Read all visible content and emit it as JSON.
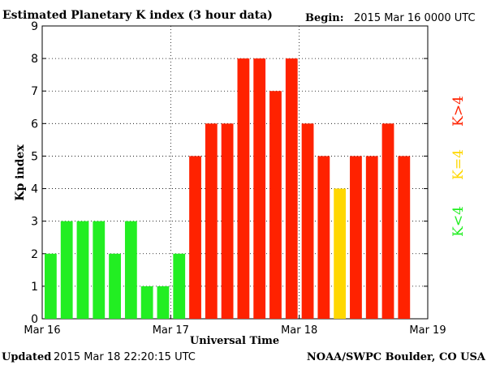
{
  "header": {
    "title": "Estimated Planetary K index (3 hour data)",
    "begin_label": "Begin:",
    "begin_value": "2015 Mar 16 0000 UTC"
  },
  "footer": {
    "updated_label": "Updated",
    "updated_value": "2015 Mar 18 22:20:15 UTC",
    "source": "NOAA/SWPC Boulder, CO USA"
  },
  "legend": {
    "k_lt_4": "K<4",
    "k_eq_4": "K=4",
    "k_gt_4": "K>4"
  },
  "colors": {
    "k_lt_4": "#22ee22",
    "k_eq_4": "#ffd700",
    "k_gt_4": "#ff2200"
  },
  "chart_data": {
    "type": "bar",
    "title": "Estimated Planetary K index (3 hour data)",
    "xlabel": "Universal Time",
    "ylabel": "Kp index",
    "ylim": [
      0,
      9
    ],
    "yticks": [
      "0",
      "1",
      "2",
      "3",
      "4",
      "5",
      "6",
      "7",
      "8",
      "9"
    ],
    "xtick_labels": [
      "Mar 16",
      "Mar 17",
      "Mar 18",
      "Mar 19"
    ],
    "grid": true,
    "slots_per_day": 8,
    "values": [
      2,
      3,
      3,
      3,
      2,
      3,
      1,
      1,
      2,
      5,
      6,
      6,
      8,
      8,
      7,
      8,
      6,
      5,
      4,
      5,
      5,
      6,
      5
    ]
  }
}
